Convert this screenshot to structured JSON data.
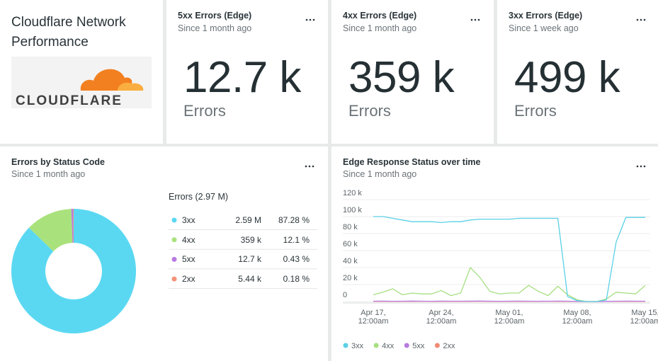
{
  "brand": {
    "title": "Cloudflare Network Performance",
    "logo_text": "CLOUDFLARE"
  },
  "billboards": [
    {
      "title": "5xx Errors (Edge)",
      "subtitle": "Since 1 month ago",
      "value": "12.7 k",
      "unit": "Errors"
    },
    {
      "title": "4xx Errors (Edge)",
      "subtitle": "Since 1 month ago",
      "value": "359 k",
      "unit": "Errors"
    },
    {
      "title": "3xx Errors (Edge)",
      "subtitle": "Since 1 week ago",
      "value": "499 k",
      "unit": "Errors"
    }
  ],
  "chart_data": [
    {
      "type": "pie",
      "title": "Errors by Status Code",
      "subtitle": "Since 1 month ago",
      "total_label": "Errors (2.97 M)",
      "categories": [
        "3xx",
        "4xx",
        "5xx",
        "2xx"
      ],
      "values": [
        87.28,
        12.1,
        0.43,
        0.18
      ],
      "value_labels": [
        "87.28 %",
        "12.1 %",
        "0.43 %",
        "0.18 %"
      ],
      "count_labels": [
        "2.59 M",
        "359 k",
        "12.7 k",
        "5.44 k"
      ],
      "colors": [
        "#5ad8f2",
        "#a9e27c",
        "#b87ae2",
        "#f2937a"
      ]
    },
    {
      "type": "line",
      "title": "Edge Response Status over time",
      "subtitle": "Since 1 month ago",
      "categories": [
        "Apr 17, 12:00am",
        null,
        null,
        null,
        null,
        null,
        null,
        "Apr 24, 12:00am",
        null,
        null,
        null,
        null,
        null,
        null,
        "May 01, 12:00am",
        null,
        null,
        null,
        null,
        null,
        null,
        "May 08, 12:00am",
        null,
        null,
        null,
        null,
        null,
        null,
        "May 15, 12:00am"
      ],
      "series": [
        {
          "name": "3xx",
          "color": "#5ad0e6",
          "values": [
            100000,
            100000,
            98000,
            96000,
            94000,
            94000,
            94000,
            93000,
            94000,
            94000,
            96000,
            97000,
            97000,
            97000,
            97000,
            98000,
            98000,
            98000,
            98000,
            98000,
            6000,
            1000,
            0,
            0,
            2000,
            70000,
            99000,
            99000,
            99000
          ]
        },
        {
          "name": "4xx",
          "color": "#a6df80",
          "values": [
            8000,
            11000,
            15000,
            8000,
            10000,
            9000,
            9000,
            13000,
            7000,
            10000,
            40000,
            28000,
            12000,
            9000,
            10000,
            10000,
            19000,
            12000,
            7000,
            18000,
            8000,
            2000,
            0,
            0,
            3000,
            11000,
            10000,
            9000,
            19000
          ]
        },
        {
          "name": "5xx",
          "color": "#b77be0",
          "values": [
            400,
            500,
            300,
            400,
            600,
            400,
            300,
            500,
            400,
            400,
            500,
            600,
            400,
            300,
            400,
            500,
            400,
            300,
            400,
            500,
            400,
            100,
            0,
            0,
            200,
            400,
            500,
            400,
            400
          ]
        },
        {
          "name": "2xx",
          "color": "#f08a74",
          "values": [
            200,
            200,
            100,
            200,
            200,
            300,
            200,
            100,
            200,
            200,
            200,
            300,
            200,
            200,
            100,
            200,
            200,
            200,
            300,
            200,
            100,
            0,
            0,
            0,
            100,
            200,
            200,
            200,
            200
          ]
        }
      ],
      "ylim": [
        0,
        120000
      ],
      "yticks": [
        0,
        {
          "value": 20000,
          "label": "20 k"
        },
        {
          "value": 40000,
          "label": "40 k"
        },
        {
          "value": 60000,
          "label": "60 k"
        },
        {
          "value": 80000,
          "label": "80 k"
        },
        {
          "value": 100000,
          "label": "100 k"
        },
        {
          "value": 120000,
          "label": "120 k"
        }
      ],
      "grid": true,
      "legend": "bottom"
    }
  ]
}
